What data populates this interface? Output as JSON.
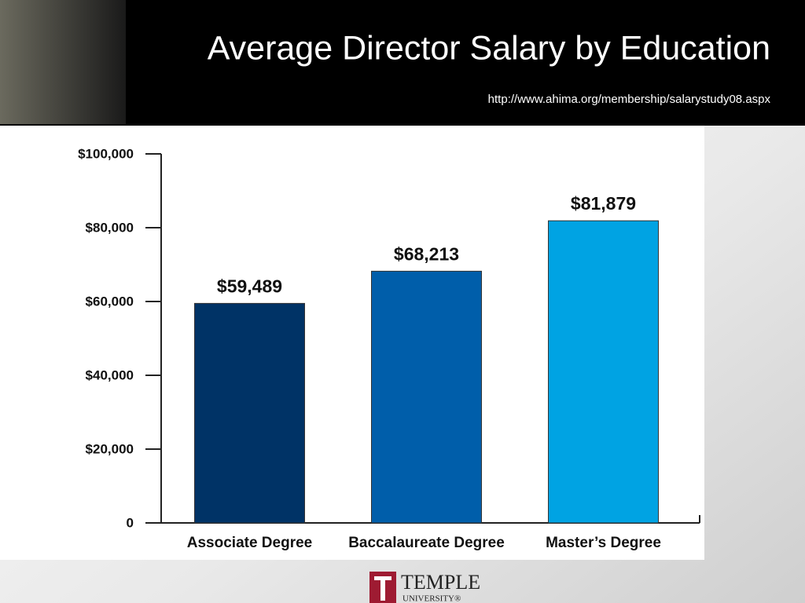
{
  "chart_data": {
    "type": "bar",
    "title": "Average Director Salary by Education",
    "subtitle": "http://www.ahima.org/membership/salarystudy08.aspx",
    "categories": [
      "Associate Degree",
      "Baccalaureate Degree",
      "Master’s Degree"
    ],
    "values": [
      59489,
      68213,
      81879
    ],
    "value_labels": [
      "$59,489",
      "$68,213",
      "$81,879"
    ],
    "colors": [
      "#003366",
      "#005eaa",
      "#00a3e3"
    ],
    "ylim": [
      0,
      100000
    ],
    "yticks": [
      0,
      {
        "value": 20000,
        "label": "$20,000"
      },
      {
        "value": 40000,
        "label": "$40,000"
      },
      {
        "value": 60000,
        "label": "$60,000"
      },
      {
        "value": 80000,
        "label": "$80,000"
      },
      {
        "value": 100000,
        "label": "$100,000"
      }
    ],
    "grid": false
  },
  "logo": {
    "name": "TEMPLE",
    "subname": "UNIVERSITY®"
  }
}
